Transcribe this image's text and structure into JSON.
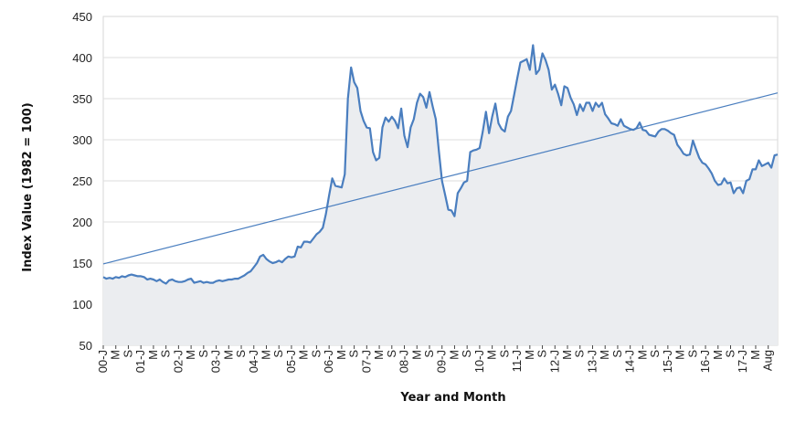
{
  "chart_data": {
    "type": "area",
    "title": "",
    "xlabel": "Year and Month",
    "ylabel": "Index Value (1982 = 100)",
    "ylim": [
      50,
      450
    ],
    "y_ticks": [
      50,
      100,
      150,
      200,
      250,
      300,
      350,
      400,
      450
    ],
    "x_tick_labels": [
      "00-J",
      "M",
      "S",
      "01-J",
      "M",
      "S",
      "02-J",
      "M",
      "S",
      "03-J",
      "M",
      "S",
      "04-J",
      "M",
      "S",
      "05-J",
      "M",
      "S",
      "06-J",
      "M",
      "S",
      "07-J",
      "M",
      "S",
      "08-J",
      "M",
      "S",
      "09-J",
      "M",
      "S",
      "10-J",
      "M",
      "S",
      "11-J",
      "M",
      "S",
      "12-J",
      "M",
      "S",
      "13-J",
      "M",
      "S",
      "14-J",
      "M",
      "S",
      "15-J",
      "M",
      "S",
      "16-J",
      "M",
      "S",
      "17-J",
      "M",
      "Aug"
    ],
    "series": [
      {
        "name": "Index Value",
        "start": "2000-01",
        "end": "2017-08",
        "values": [
          133,
          131,
          132,
          131,
          133,
          132,
          134,
          133,
          135,
          136,
          135,
          134,
          134,
          133,
          130,
          131,
          130,
          128,
          130,
          127,
          125,
          129,
          130,
          128,
          127,
          127,
          128,
          130,
          131,
          126,
          127,
          128,
          126,
          127,
          126,
          126,
          128,
          129,
          128,
          129,
          130,
          130,
          131,
          131,
          133,
          135,
          138,
          140,
          145,
          150,
          158,
          160,
          155,
          152,
          150,
          151,
          153,
          151,
          155,
          158,
          157,
          158,
          170,
          169,
          176,
          176,
          175,
          180,
          185,
          188,
          193,
          210,
          232,
          253,
          244,
          243,
          242,
          258,
          350,
          388,
          370,
          363,
          335,
          323,
          315,
          314,
          285,
          275,
          278,
          315,
          327,
          322,
          328,
          323,
          314,
          338,
          305,
          291,
          315,
          325,
          345,
          356,
          352,
          339,
          358,
          341,
          325,
          286,
          250,
          233,
          215,
          214,
          207,
          235,
          241,
          248,
          250,
          285,
          287,
          288,
          290,
          310,
          334,
          308,
          328,
          344,
          320,
          313,
          310,
          328,
          335,
          355,
          375,
          394,
          396,
          398,
          385,
          415,
          380,
          385,
          405,
          397,
          385,
          361,
          367,
          356,
          342,
          365,
          363,
          351,
          343,
          330,
          343,
          335,
          345,
          345,
          335,
          345,
          340,
          345,
          331,
          326,
          320,
          319,
          317,
          325,
          317,
          315,
          313,
          312,
          314,
          321,
          312,
          311,
          306,
          305,
          304,
          310,
          313,
          313,
          311,
          308,
          306,
          294,
          289,
          283,
          281,
          282,
          299,
          288,
          278,
          272,
          270,
          265,
          259,
          250,
          245,
          246,
          253,
          247,
          248,
          235,
          241,
          242,
          235,
          250,
          252,
          264,
          264,
          275,
          268,
          270,
          272,
          266,
          281,
          282
        ]
      },
      {
        "name": "Linear trend",
        "type": "line",
        "start_value": 149,
        "end_value": 357
      }
    ],
    "colors": {
      "line": "#4a7ebf",
      "area_fill": "#ebedf0",
      "trend": "#4a7ebf",
      "grid": "#dddddd",
      "axis": "#444444"
    }
  }
}
